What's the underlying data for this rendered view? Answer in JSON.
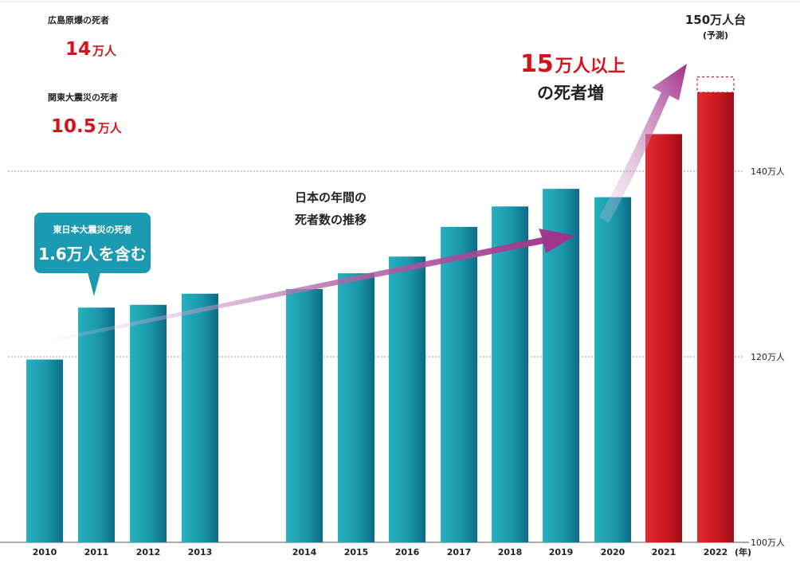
{
  "chart_data": {
    "type": "bar",
    "categories": [
      "2010",
      "2011",
      "2012",
      "2013",
      "2014",
      "2015",
      "2016",
      "2017",
      "2018",
      "2019",
      "2020",
      "2021",
      "2022"
    ],
    "values": [
      119.7,
      125.3,
      125.6,
      126.8,
      127.3,
      129.0,
      130.8,
      134.0,
      136.2,
      138.1,
      137.2,
      144.0,
      148.5
    ],
    "forecast": {
      "category": "2022",
      "value": 150
    },
    "colors": {
      "teal": "#1d9aac",
      "red": "#c8171f",
      "arrow": "#a03389"
    },
    "ylim": [
      100,
      150
    ],
    "yticks": [
      {
        "value": 100,
        "label": "100万人"
      },
      {
        "value": 120,
        "label": "120万人"
      },
      {
        "value": 140,
        "label": "140万人"
      }
    ],
    "x_unit": "(年)",
    "notes": [
      {
        "label": "広島原爆の死者",
        "value": "14",
        "unit": "万人"
      },
      {
        "label": "関東大震災の死者",
        "value": "10.5",
        "unit": "万人"
      }
    ],
    "callout": {
      "line1": "東日本大震災の死者",
      "line2": "1.6万人を含む"
    },
    "trend_label": [
      "日本の年間の",
      "死者数の推移"
    ],
    "increase_label": {
      "value": "15",
      "value_unit": "万人以上",
      "line2": "の死者増"
    },
    "forecast_label": {
      "line1": "150万人台",
      "line2": "(予測)"
    }
  }
}
